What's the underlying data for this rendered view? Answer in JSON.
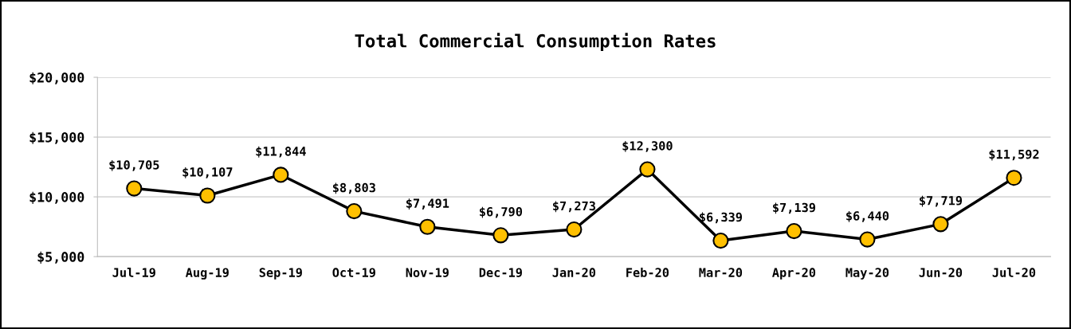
{
  "chart_data": {
    "type": "line",
    "title": "Total Commercial Consumption Rates",
    "categories": [
      "Jul-19",
      "Aug-19",
      "Sep-19",
      "Oct-19",
      "Nov-19",
      "Dec-19",
      "Jan-20",
      "Feb-20",
      "Mar-20",
      "Apr-20",
      "May-20",
      "Jun-20",
      "Jul-20"
    ],
    "series": [
      {
        "color": "#000000",
        "colors": [
          "#ffc000",
          "#ffc000",
          "#ffc000",
          "#ffc000",
          "#ffc000",
          "#ffc000",
          "#ffc000",
          "#ffc000",
          "#ffc000",
          "#ffc000",
          "#ffc000",
          "#ffc000",
          "#ffc000"
        ],
        "values": [
          10705,
          10107,
          11844,
          8803,
          7491,
          6790,
          7273,
          12300,
          6339,
          7139,
          6440,
          7719,
          11592
        ],
        "value_labels": [
          "$10,705",
          "$10,107",
          "$11,844",
          "$8,803",
          "$7,491",
          "$6,790",
          "$7,273",
          "$12,300",
          "$6,339",
          "$7,139",
          "$6,440",
          "$7,719",
          "$11,592"
        ]
      }
    ],
    "ylim": [
      5000,
      20000
    ],
    "yticks": [
      {
        "value": 5000,
        "label": "$5,000"
      },
      {
        "value": 10000,
        "label": "$10,000"
      },
      {
        "value": 15000,
        "label": "$15,000"
      },
      {
        "value": 20000,
        "label": "$20,000"
      }
    ],
    "grid": "y",
    "marker": "circle",
    "line_style": "solid",
    "legend": false
  }
}
